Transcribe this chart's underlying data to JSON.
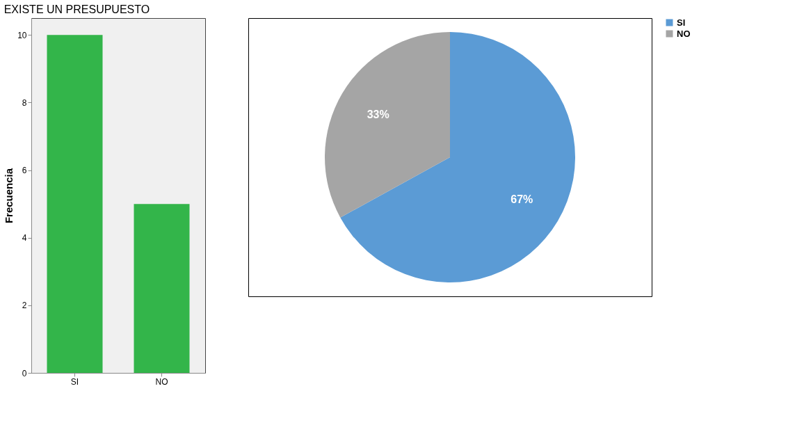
{
  "chart_data": [
    {
      "type": "bar",
      "title": "EXISTE UN PRESUPUESTO",
      "ylabel": "Frecuencia",
      "categories": [
        "SI",
        "NO"
      ],
      "values": [
        10,
        5
      ],
      "color": "#33b54a",
      "ylim": [
        0,
        10.5
      ],
      "yticks": [
        0,
        2,
        4,
        6,
        8,
        10
      ],
      "grid": false
    },
    {
      "type": "pie",
      "categories": [
        "SI",
        "NO"
      ],
      "values": [
        67,
        33
      ],
      "colors": [
        "#5b9bd5",
        "#a5a5a5"
      ],
      "value_labels": [
        "67%",
        "33%"
      ],
      "legend": "right"
    }
  ]
}
